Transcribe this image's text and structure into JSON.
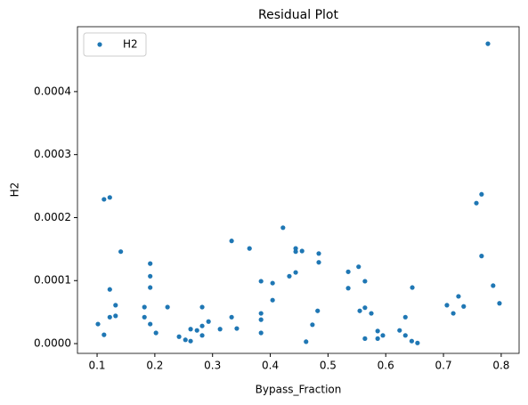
{
  "chart_data": {
    "type": "scatter",
    "title": "Residual Plot",
    "x_label": "Bypass_Fraction",
    "y_label": "H2",
    "x": [
      0.1015,
      0.112,
      0.112,
      0.122,
      0.122,
      0.122,
      0.132,
      0.132,
      0.141,
      0.182,
      0.182,
      0.192,
      0.192,
      0.192,
      0.192,
      0.202,
      0.222,
      0.242,
      0.253,
      0.262,
      0.262,
      0.273,
      0.282,
      0.282,
      0.282,
      0.293,
      0.313,
      0.333,
      0.333,
      0.342,
      0.364,
      0.384,
      0.384,
      0.384,
      0.384,
      0.404,
      0.404,
      0.422,
      0.433,
      0.444,
      0.444,
      0.444,
      0.455,
      0.462,
      0.473,
      0.482,
      0.484,
      0.484,
      0.535,
      0.535,
      0.553,
      0.555,
      0.564,
      0.564,
      0.564,
      0.575,
      0.586,
      0.586,
      0.595,
      0.624,
      0.634,
      0.634,
      0.645,
      0.646,
      0.655,
      0.706,
      0.717,
      0.726,
      0.735,
      0.757,
      0.766,
      0.766,
      0.777,
      0.786,
      0.797
    ],
    "series": [
      {
        "name": "H2",
        "color": "#1f77b4",
        "values": [
          3.1e-05,
          1.4e-05,
          0.000229,
          0.000232,
          8.6e-05,
          4.2e-05,
          6.1e-05,
          4.4e-05,
          0.000146,
          5.8e-05,
          4.2e-05,
          0.000127,
          0.000107,
          8.9e-05,
          3.1e-05,
          1.7e-05,
          5.8e-05,
          1.1e-05,
          6e-06,
          2.3e-05,
          4e-06,
          2.1e-05,
          5.8e-05,
          2.8e-05,
          1.3e-05,
          3.5e-05,
          2.3e-05,
          4.2e-05,
          0.000163,
          2.4e-05,
          0.000151,
          9.9e-05,
          4.8e-05,
          3.8e-05,
          1.7e-05,
          9.6e-05,
          6.9e-05,
          0.000184,
          0.000107,
          0.000151,
          0.000146,
          0.000113,
          0.000147,
          3e-06,
          3e-05,
          5.2e-05,
          0.000143,
          0.000129,
          0.000114,
          8.8e-05,
          0.000122,
          5.2e-05,
          9.9e-05,
          5.7e-05,
          8e-06,
          4.8e-05,
          2e-05,
          8e-06,
          1.3e-05,
          2.1e-05,
          4.2e-05,
          1.3e-05,
          4e-06,
          8.9e-05,
          1e-06,
          6.1e-05,
          4.8e-05,
          7.5e-05,
          5.9e-05,
          0.000223,
          0.000237,
          0.000139,
          0.000476,
          9.2e-05,
          6.4e-05
        ]
      }
    ],
    "xlim": [
      0.066,
      0.831
    ],
    "xticks": [
      0.1,
      0.2,
      0.3,
      0.4,
      0.5,
      0.6,
      0.7,
      0.8
    ],
    "ylim": [
      -1.55e-05,
      0.000503
    ],
    "yticks": [
      {
        "value": 0,
        "label": "0.0000"
      },
      {
        "value": 0.0001,
        "label": "0.0001"
      },
      {
        "value": 0.0002,
        "label": "0.0002"
      },
      {
        "value": 0.0003,
        "label": "0.0003"
      },
      {
        "value": 0.0004,
        "label": "0.0004"
      }
    ],
    "legend": "upper left",
    "grid": false
  }
}
